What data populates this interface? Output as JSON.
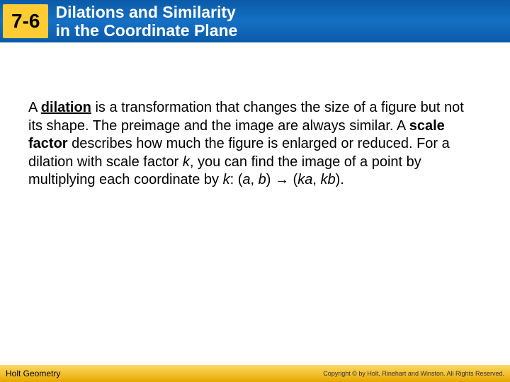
{
  "header": {
    "chapter": "7-6",
    "title_line1": "Dilations and Similarity",
    "title_line2": "in the Coordinate Plane",
    "background_gradient": [
      "#0a5aa8",
      "#1570c4",
      "#0a5aa8"
    ],
    "chapter_box_bg": "#ffcc33",
    "title_color": "#ffffff"
  },
  "body": {
    "text_parts": {
      "p1": "A ",
      "dilation": "dilation",
      "p2": " is a transformation that changes the size of a figure but not its shape. The preimage and the image are always similar. A ",
      "scale_factor": "scale factor",
      "p3": " describes how much the figure is enlarged or reduced. For a dilation with scale factor ",
      "k1": "k",
      "p4": ", you can find the image of a point by multiplying each coordinate by ",
      "k2": "k",
      "p5": ": (",
      "a1": "a",
      "comma1": ", ",
      "b1": "b",
      "arrow_seg": ") → (",
      "ka": "ka",
      "comma2": ", ",
      "kb": "kb",
      "p6": ")."
    },
    "font_size": 20,
    "text_color": "#000000"
  },
  "footer": {
    "left": "Holt Geometry",
    "right": "Copyright © by Holt, Rinehart and Winston. All Rights Reserved.",
    "background_gradient": [
      "#ffd966",
      "#e6a800"
    ]
  }
}
